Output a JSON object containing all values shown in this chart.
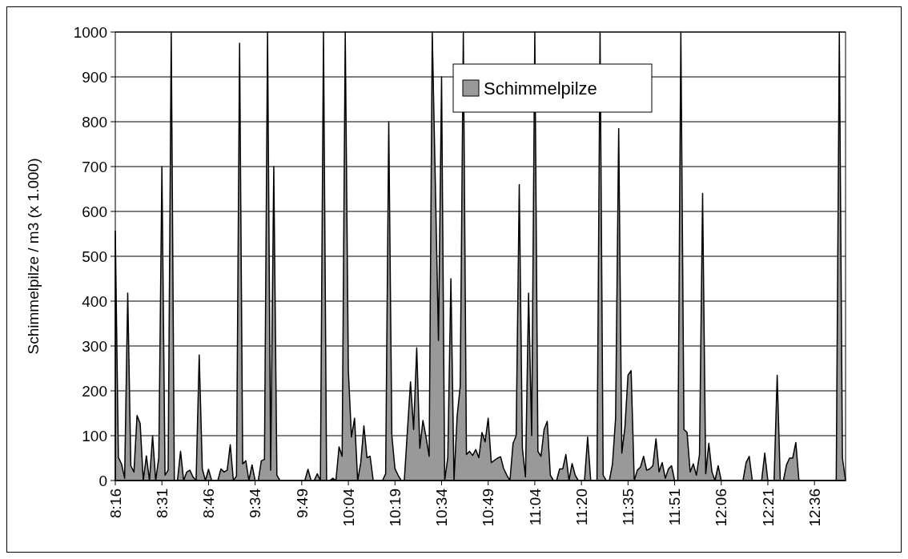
{
  "chart_data": {
    "type": "area",
    "ylabel": "Schimmelpilze / m3 (x 1.000)",
    "categories": [
      "8:16",
      null,
      null,
      null,
      null,
      null,
      null,
      null,
      null,
      null,
      null,
      null,
      null,
      null,
      null,
      "8:31",
      null,
      null,
      null,
      null,
      null,
      null,
      null,
      null,
      null,
      null,
      null,
      null,
      null,
      null,
      "8:46",
      null,
      null,
      null,
      null,
      null,
      null,
      null,
      null,
      null,
      null,
      null,
      null,
      null,
      null,
      "9:34",
      null,
      null,
      null,
      null,
      null,
      null,
      null,
      null,
      null,
      null,
      null,
      null,
      null,
      null,
      "9:49",
      null,
      null,
      null,
      null,
      null,
      null,
      null,
      null,
      null,
      null,
      null,
      null,
      null,
      null,
      "10:04",
      null,
      null,
      null,
      null,
      null,
      null,
      null,
      null,
      null,
      null,
      null,
      null,
      null,
      null,
      "10:19",
      null,
      null,
      null,
      null,
      null,
      null,
      null,
      null,
      null,
      null,
      null,
      null,
      null,
      null,
      "10:34",
      null,
      null,
      null,
      null,
      null,
      null,
      null,
      null,
      null,
      null,
      null,
      null,
      null,
      null,
      "10:49",
      null,
      null,
      null,
      null,
      null,
      null,
      null,
      null,
      null,
      null,
      null,
      null,
      null,
      null,
      "11:04",
      null,
      null,
      null,
      null,
      null,
      null,
      null,
      null,
      null,
      null,
      null,
      null,
      null,
      null,
      "11:20",
      null,
      null,
      null,
      null,
      null,
      null,
      null,
      null,
      null,
      null,
      null,
      null,
      null,
      null,
      "11:35",
      null,
      null,
      null,
      null,
      null,
      null,
      null,
      null,
      null,
      null,
      null,
      null,
      null,
      null,
      "11:51",
      null,
      null,
      null,
      null,
      null,
      null,
      null,
      null,
      null,
      null,
      null,
      null,
      null,
      null,
      "12:06",
      null,
      null,
      null,
      null,
      null,
      null,
      null,
      null,
      null,
      null,
      null,
      null,
      null,
      null,
      "12:21",
      null,
      null,
      null,
      null,
      null,
      null,
      null,
      null,
      null,
      null,
      null,
      null,
      null,
      null,
      "12:36",
      null,
      null,
      null,
      null,
      null,
      null,
      null,
      null,
      null,
      null
    ],
    "series": [
      {
        "name": "Schimmelpilze",
        "color": "#999999",
        "values": [
          556,
          51,
          37,
          5,
          418,
          33,
          19,
          145,
          127,
          0,
          55,
          0,
          100,
          0,
          51,
          700,
          12,
          23,
          1000,
          0,
          0,
          65,
          0,
          19,
          23,
          8,
          0,
          280,
          26,
          0,
          25,
          0,
          0,
          0,
          26,
          19,
          23,
          80,
          0,
          10,
          975,
          37,
          44,
          0,
          35,
          0,
          0,
          44,
          47,
          1000,
          23,
          700,
          12,
          0,
          0,
          0,
          0,
          0,
          0,
          0,
          0,
          0,
          25,
          0,
          0,
          15,
          0,
          1000,
          0,
          0,
          5,
          0,
          75,
          54,
          1000,
          245,
          97,
          139,
          0,
          40,
          122,
          51,
          54,
          0,
          0,
          0,
          0,
          15,
          800,
          100,
          26,
          12,
          0,
          0,
          110,
          220,
          114,
          296,
          72,
          134,
          97,
          54,
          1000,
          660,
          312,
          900,
          0,
          51,
          450,
          0,
          143,
          210,
          1000,
          58,
          65,
          56,
          69,
          51,
          107,
          86,
          139,
          40,
          45,
          50,
          53,
          26,
          12,
          0,
          83,
          100,
          660,
          72,
          8,
          418,
          100,
          1000,
          65,
          54,
          114,
          132,
          12,
          0,
          0,
          26,
          26,
          58,
          0,
          38,
          12,
          0,
          0,
          0,
          97,
          0,
          0,
          0,
          1000,
          12,
          0,
          0,
          37,
          139,
          785,
          61,
          118,
          235,
          245,
          0,
          23,
          30,
          54,
          23,
          26,
          33,
          93,
          19,
          40,
          5,
          26,
          33,
          0,
          0,
          1000,
          114,
          107,
          19,
          37,
          12,
          58,
          640,
          15,
          83,
          19,
          0,
          33,
          0,
          0,
          0,
          0,
          0,
          0,
          0,
          0,
          40,
          54,
          0,
          0,
          0,
          0,
          61,
          0,
          0,
          0,
          235,
          0,
          0,
          35,
          50,
          50,
          85,
          0,
          0,
          0,
          0,
          0,
          0,
          0,
          0,
          0,
          0,
          0,
          0,
          0,
          1000,
          50,
          0
        ]
      }
    ],
    "ylim": [
      0,
      1000
    ],
    "yticks": [
      0,
      100,
      200,
      300,
      400,
      500,
      600,
      700,
      800,
      900,
      1000
    ],
    "grid": "y",
    "legend": "top"
  }
}
